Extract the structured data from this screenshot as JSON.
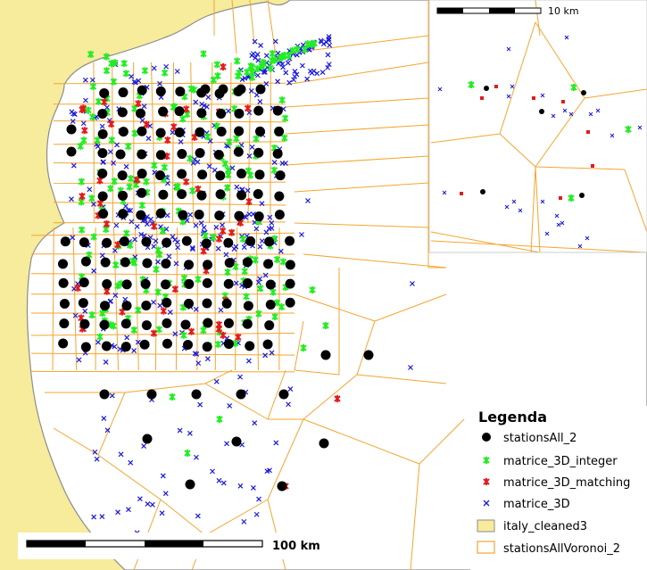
{
  "colors": {
    "land": "#f7eb9c",
    "coast_stroke": "#8c8c8c",
    "voronoi": "#f4a530",
    "station": "#000000",
    "integer": "#22ee22",
    "matching": "#e41a1c",
    "matrice": "#1a1adb"
  },
  "main_scale": {
    "label": "100 km"
  },
  "inset_scale": {
    "label": "10 km"
  },
  "legend": {
    "title": "Legenda",
    "items": [
      {
        "label": "stationsAll_2",
        "symbol": "black-dot-icon"
      },
      {
        "label": "matrice_3D_integer",
        "symbol": "green-star-icon"
      },
      {
        "label": "matrice_3D_matching",
        "symbol": "red-star-icon"
      },
      {
        "label": "matrice_3D",
        "symbol": "blue-cross-icon"
      },
      {
        "label": "italy_cleaned3",
        "symbol": "land-fill-icon"
      },
      {
        "label": "stationsAllVoronoi_2",
        "symbol": "voronoi-cell-icon"
      }
    ]
  }
}
